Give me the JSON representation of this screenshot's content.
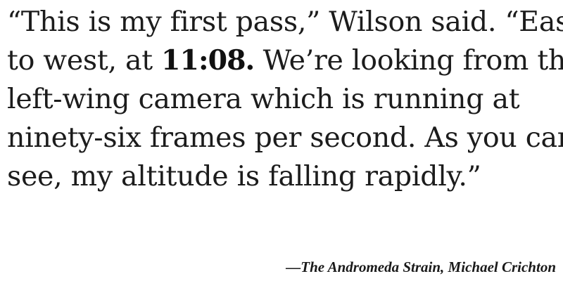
{
  "quote": {
    "lines": [
      {
        "text": "“This is my first pass,” Wilson said. “East"
      },
      {
        "before": "to west, at ",
        "emphasis": "11:08.",
        "after": " We’re looking from the"
      },
      {
        "text": "left-wing camera which is running at"
      },
      {
        "text": "ninety-six frames per second. As you can"
      },
      {
        "text": "see, my altitude is falling rapidly.”"
      }
    ]
  },
  "attribution": {
    "text": "—The Andromeda Strain, Michael Crichton"
  }
}
